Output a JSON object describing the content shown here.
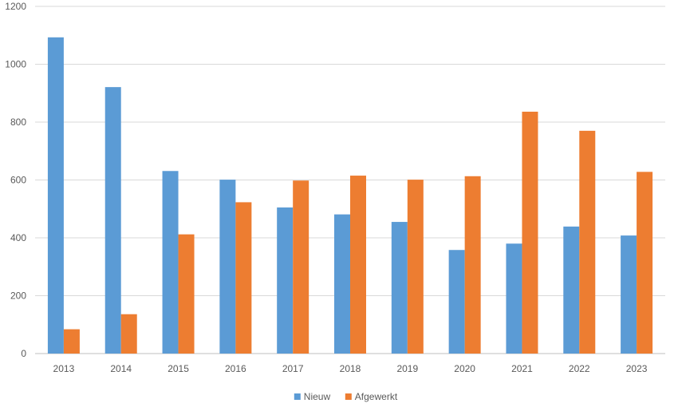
{
  "chart_data": {
    "type": "bar",
    "title": "",
    "xlabel": "",
    "ylabel": "",
    "categories": [
      "2013",
      "2014",
      "2015",
      "2016",
      "2017",
      "2018",
      "2019",
      "2020",
      "2021",
      "2022",
      "2023"
    ],
    "series": [
      {
        "name": "Nieuw",
        "color": "#5b9bd5",
        "values": [
          1093,
          921,
          631,
          601,
          505,
          481,
          455,
          358,
          380,
          439,
          408
        ]
      },
      {
        "name": "Afgewerkt",
        "color": "#ed7d31",
        "values": [
          84,
          136,
          412,
          523,
          598,
          615,
          601,
          613,
          836,
          770,
          628
        ]
      }
    ],
    "yticks": [
      "0",
      "200",
      "400",
      "600",
      "800",
      "1000",
      "1200"
    ],
    "ylim": [
      0,
      1200
    ],
    "grid": true,
    "legend_position": "bottom"
  }
}
